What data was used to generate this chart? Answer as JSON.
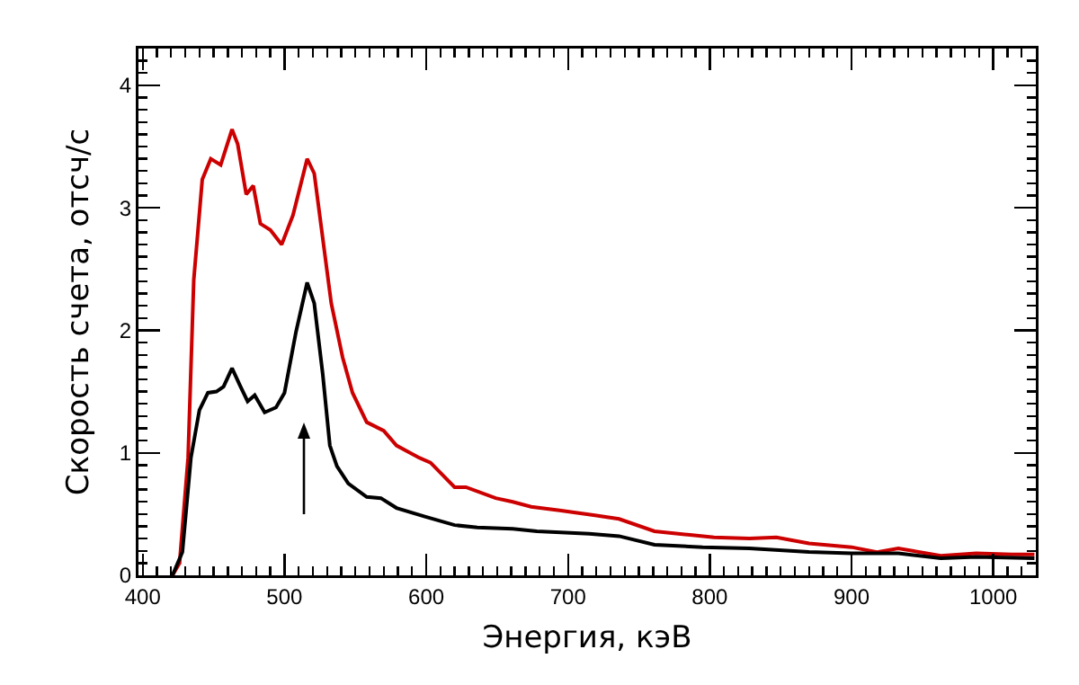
{
  "chart_data": {
    "type": "line",
    "xlabel": "Энергия, кэВ",
    "ylabel": "Скорость счета, отсч/с",
    "xlim": [
      397,
      1030
    ],
    "xticks": [
      400,
      500,
      600,
      700,
      800,
      900,
      1000
    ],
    "ylim": [
      0,
      4.3
    ],
    "yticks": [
      0,
      1,
      2,
      3,
      4
    ],
    "grid": false,
    "marker": "none",
    "line_style": "solid",
    "series": [
      {
        "color": "#cc0000",
        "x": [
          421,
          426,
          432,
          436,
          442,
          448,
          455,
          463,
          467,
          473,
          478,
          483,
          490,
          498,
          506,
          516,
          521,
          527,
          533,
          541,
          548,
          558,
          570,
          579,
          595,
          603,
          620,
          628,
          649,
          661,
          674,
          694,
          719,
          736,
          761,
          786,
          803,
          828,
          847,
          870,
          900,
          918,
          933,
          963,
          988,
          1013,
          1029
        ],
        "values": [
          0,
          0.1,
          0.96,
          2.41,
          3.23,
          3.4,
          3.35,
          3.64,
          3.52,
          3.11,
          3.18,
          2.87,
          2.82,
          2.7,
          2.94,
          3.4,
          3.28,
          2.75,
          2.22,
          1.78,
          1.49,
          1.25,
          1.18,
          1.06,
          0.96,
          0.92,
          0.72,
          0.72,
          0.63,
          0.6,
          0.56,
          0.53,
          0.49,
          0.46,
          0.36,
          0.33,
          0.31,
          0.3,
          0.31,
          0.26,
          0.23,
          0.19,
          0.22,
          0.16,
          0.18,
          0.17,
          0.17
        ]
      },
      {
        "color": "#000000",
        "x": [
          421,
          428,
          434,
          440,
          446,
          452,
          457,
          463,
          469,
          474,
          479,
          486,
          494,
          500,
          508,
          516,
          521,
          527,
          532,
          537,
          545,
          558,
          568,
          579,
          599,
          620,
          636,
          661,
          678,
          715,
          736,
          761,
          795,
          828,
          870,
          900,
          933,
          963,
          988,
          1029
        ],
        "values": [
          0,
          0.19,
          0.96,
          1.35,
          1.49,
          1.5,
          1.54,
          1.69,
          1.54,
          1.42,
          1.47,
          1.33,
          1.37,
          1.49,
          1.98,
          2.39,
          2.22,
          1.64,
          1.06,
          0.89,
          0.75,
          0.64,
          0.63,
          0.55,
          0.48,
          0.41,
          0.39,
          0.38,
          0.36,
          0.34,
          0.32,
          0.25,
          0.23,
          0.22,
          0.19,
          0.18,
          0.18,
          0.14,
          0.15,
          0.14
        ]
      }
    ]
  }
}
